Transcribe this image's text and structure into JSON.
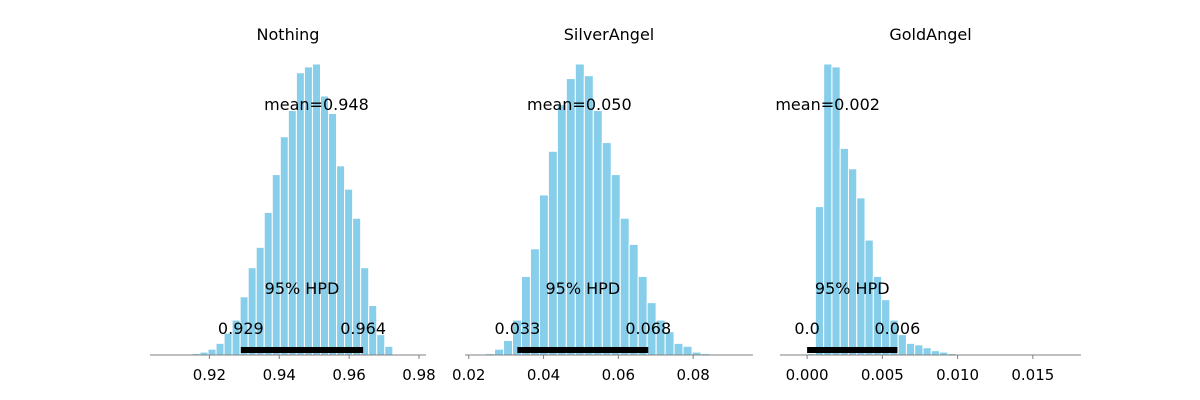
{
  "chart_data": [
    {
      "type": "bar",
      "title": "Nothing",
      "mean_label": "mean=0.948",
      "hpd_label": "95% HPD",
      "hpd_low_label": "0.929",
      "hpd_high_label": "0.964",
      "hpd": [
        0.929,
        0.964
      ],
      "xlim": [
        0.903,
        0.982
      ],
      "xticks": [
        0.92,
        0.94,
        0.96,
        0.98
      ],
      "xtick_labels": [
        "0.92",
        "0.94",
        "0.96",
        "0.98"
      ],
      "bin_edges": [
        0.915,
        0.9173,
        0.9196,
        0.9219,
        0.9242,
        0.9265,
        0.9288,
        0.9311,
        0.9334,
        0.9357,
        0.938,
        0.9403,
        0.9426,
        0.9449,
        0.9472,
        0.9495,
        0.9518,
        0.9541,
        0.9564,
        0.9587,
        0.961,
        0.9633,
        0.9656,
        0.9679,
        0.9702,
        0.9725
      ],
      "values": [
        0.005,
        0.01,
        0.02,
        0.04,
        0.075,
        0.12,
        0.2,
        0.3,
        0.37,
        0.49,
        0.62,
        0.75,
        0.84,
        0.97,
        0.99,
        1.0,
        0.89,
        0.83,
        0.65,
        0.57,
        0.47,
        0.3,
        0.17,
        0.07,
        0.03
      ]
    },
    {
      "type": "bar",
      "title": "SilverAngel",
      "mean_label": "mean=0.050",
      "hpd_label": "95% HPD",
      "hpd_low_label": "0.033",
      "hpd_high_label": "0.068",
      "hpd": [
        0.033,
        0.068
      ],
      "xlim": [
        0.019,
        0.096
      ],
      "xticks": [
        0.02,
        0.04,
        0.06,
        0.08
      ],
      "xtick_labels": [
        "0.02",
        "0.04",
        "0.06",
        "0.08"
      ],
      "bin_edges": [
        0.0245,
        0.0269,
        0.0293,
        0.0317,
        0.0341,
        0.0365,
        0.0389,
        0.0413,
        0.0437,
        0.0461,
        0.0485,
        0.0509,
        0.0533,
        0.0557,
        0.0581,
        0.0605,
        0.0629,
        0.0653,
        0.0677,
        0.0701,
        0.0725,
        0.0749,
        0.0773,
        0.0797,
        0.0821,
        0.0845,
        0.0869
      ],
      "values": [
        0.005,
        0.02,
        0.05,
        0.12,
        0.27,
        0.365,
        0.55,
        0.7,
        0.86,
        0.95,
        1.0,
        0.96,
        0.84,
        0.73,
        0.62,
        0.47,
        0.38,
        0.27,
        0.18,
        0.12,
        0.08,
        0.04,
        0.03,
        0.01,
        0.005,
        0.003
      ]
    },
    {
      "type": "bar",
      "title": "GoldAngel",
      "mean_label": "mean=0.002",
      "hpd_label": "95% HPD",
      "hpd_low_label": "0.0",
      "hpd_high_label": "0.006",
      "hpd": [
        0.0,
        0.006
      ],
      "xlim": [
        -0.0018,
        0.0182
      ],
      "xticks": [
        0.0,
        0.005,
        0.01,
        0.015
      ],
      "xtick_labels": [
        "0.000",
        "0.005",
        "0.010",
        "0.015"
      ],
      "bin_edges": [
        0.0,
        0.00055,
        0.0011,
        0.00165,
        0.0022,
        0.00275,
        0.0033,
        0.00385,
        0.0044,
        0.00495,
        0.0055,
        0.00605,
        0.0066,
        0.00715,
        0.0077,
        0.00825,
        0.0088,
        0.00935,
        0.0099,
        0.01045
      ],
      "values": [
        0.005,
        0.51,
        1.0,
        0.99,
        0.71,
        0.64,
        0.54,
        0.395,
        0.27,
        0.19,
        0.12,
        0.07,
        0.04,
        0.035,
        0.025,
        0.015,
        0.01,
        0.005,
        0.002
      ]
    }
  ]
}
